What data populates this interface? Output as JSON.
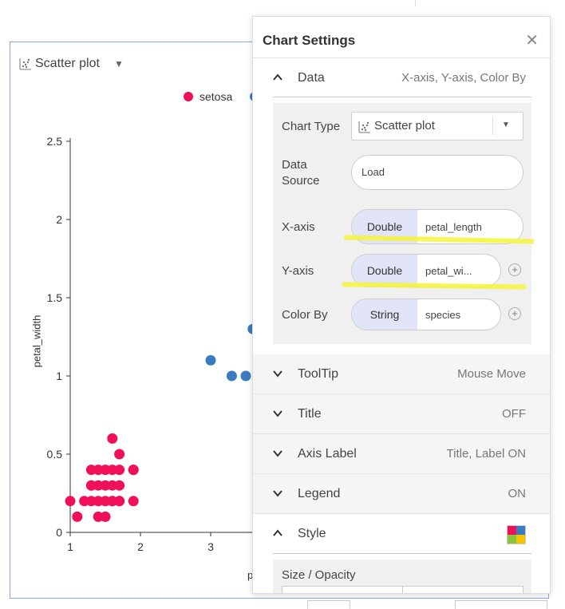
{
  "chart_header": {
    "type_label": "Scatter plot"
  },
  "legend": [
    {
      "name": "setosa",
      "color": "#f0105a"
    },
    {
      "name": "",
      "color": "#3b7bbf"
    }
  ],
  "chart_data": {
    "type": "scatter",
    "xlabel": "p",
    "ylabel": "petal_width",
    "xlim": [
      1,
      3.6
    ],
    "ylim": [
      0,
      2.5
    ],
    "x_ticks": [
      "1",
      "2",
      "3"
    ],
    "y_ticks": [
      "0",
      "0.5",
      "1",
      "1.5",
      "2",
      "2.5"
    ],
    "series": [
      {
        "name": "setosa",
        "color": "#f0105a",
        "x": [
          1.0,
          1.1,
          1.2,
          1.3,
          1.4,
          1.5,
          1.6,
          1.7,
          1.9,
          1.3,
          1.4,
          1.5,
          1.6,
          1.7,
          1.9,
          1.4,
          1.5,
          1.6,
          1.3,
          1.7,
          1.4,
          1.5,
          1.6,
          1.7,
          1.6,
          1.3,
          1.7,
          1.9
        ],
        "y": [
          0.2,
          0.1,
          0.2,
          0.2,
          0.2,
          0.2,
          0.2,
          0.2,
          0.2,
          0.3,
          0.3,
          0.3,
          0.3,
          0.3,
          0.4,
          0.4,
          0.4,
          0.4,
          0.4,
          0.5,
          0.1,
          0.1,
          0.6,
          0.4,
          0.2,
          0.3,
          0.2,
          0.4
        ]
      },
      {
        "name": "",
        "color": "#3b7bbf",
        "x": [
          3.0,
          3.3,
          3.5,
          3.6
        ],
        "y": [
          1.1,
          1.0,
          1.0,
          1.3
        ]
      }
    ]
  },
  "settings": {
    "title": "Chart Settings",
    "data_section": {
      "title": "Data",
      "summary": "X-axis, Y-axis, Color By"
    },
    "chart_type_label": "Chart Type",
    "chart_type_value": "Scatter plot",
    "data_source_label_1": "Data",
    "data_source_label_2": "Source",
    "data_source_value": "Load",
    "x_axis": {
      "label": "X-axis",
      "type": "Double",
      "field": "petal_length"
    },
    "y_axis": {
      "label": "Y-axis",
      "type": "Double",
      "field": "petal_wi..."
    },
    "color_by": {
      "label": "Color By",
      "type": "String",
      "field": "species"
    },
    "sections": [
      {
        "title": "ToolTip",
        "summary": "Mouse Move"
      },
      {
        "title": "Title",
        "summary": "OFF"
      },
      {
        "title": "Axis Label",
        "summary": "Title, Label ON"
      },
      {
        "title": "Legend",
        "summary": "ON"
      }
    ],
    "style_section": {
      "title": "Style"
    },
    "size_opacity_label": "Size / Opacity"
  },
  "icons": {
    "close": "close-icon",
    "scatter": "scatter-icon",
    "chevron_up": "chevron-up-icon",
    "chevron_down": "chevron-down-icon",
    "plus": "plus-icon"
  },
  "colors": {
    "accent_pink": "#f0105a",
    "accent_blue": "#3b7bbf",
    "highlight": "#f5f53a",
    "pill_type_bg": "#e2e4f7"
  }
}
